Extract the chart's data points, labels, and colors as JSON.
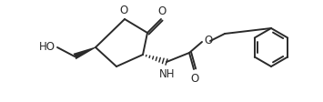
{
  "bg_color": "#ffffff",
  "line_color": "#2a2a2a",
  "line_width": 1.4,
  "figsize": [
    3.55,
    1.13
  ],
  "dpi": 100,
  "xlim": [
    0,
    355
  ],
  "ylim": [
    0,
    113
  ]
}
